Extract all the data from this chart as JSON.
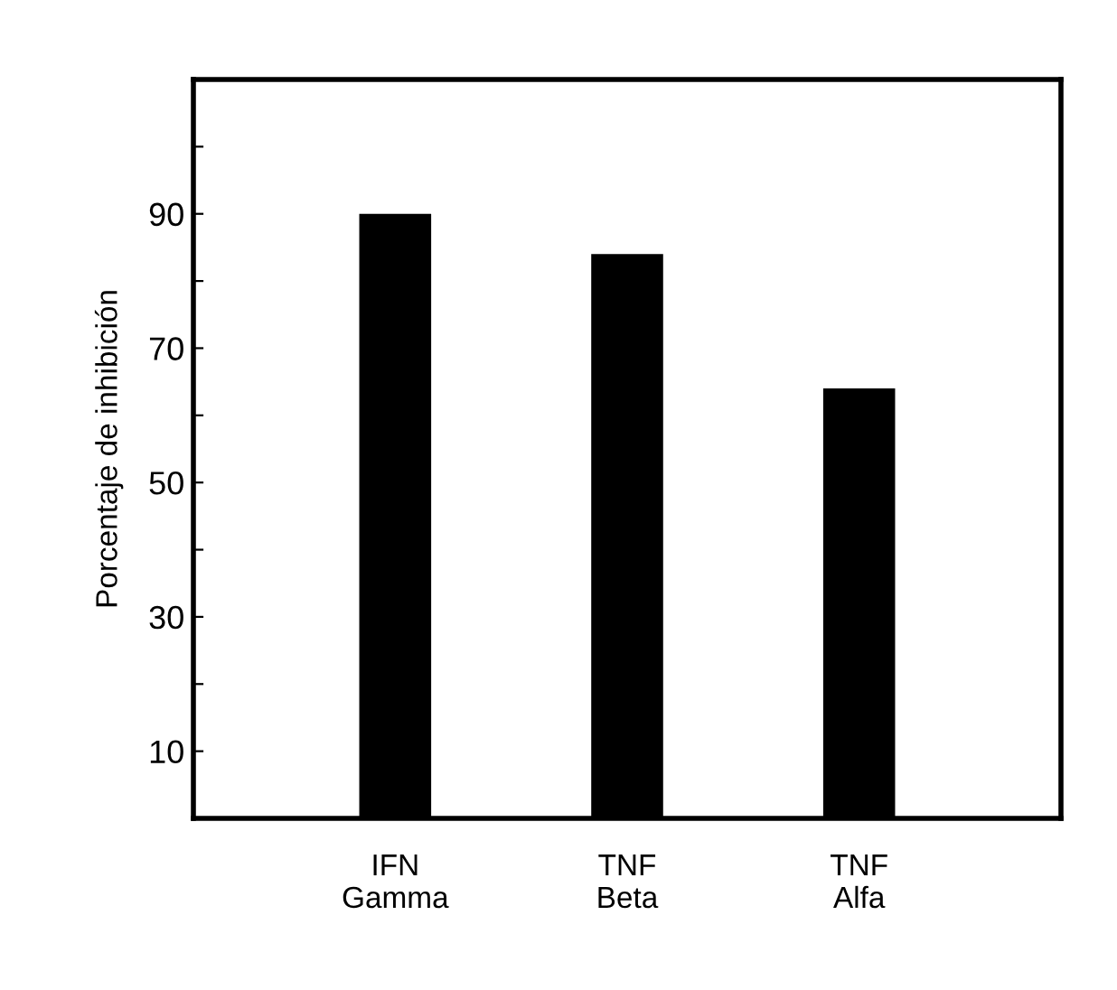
{
  "chart_data": {
    "type": "bar",
    "ylabel": "Porcentaje de inhibición",
    "categories": [
      "IFN\nGamma",
      "TNF\nBeta",
      "TNF\nAlfa"
    ],
    "values": [
      90,
      84,
      64
    ],
    "color": "#000000",
    "ylim": [
      0,
      110
    ],
    "yticks": [
      {
        "value": 10,
        "label": "10"
      },
      {
        "value": 20,
        "label": null
      },
      {
        "value": 30,
        "label": "30"
      },
      {
        "value": 40,
        "label": null
      },
      {
        "value": 50,
        "label": "50"
      },
      {
        "value": 60,
        "label": null
      },
      {
        "value": 70,
        "label": "70"
      },
      {
        "value": 80,
        "label": null
      },
      {
        "value": 90,
        "label": "90"
      },
      {
        "value": 100,
        "label": null
      }
    ],
    "grid": false,
    "legend": false
  }
}
